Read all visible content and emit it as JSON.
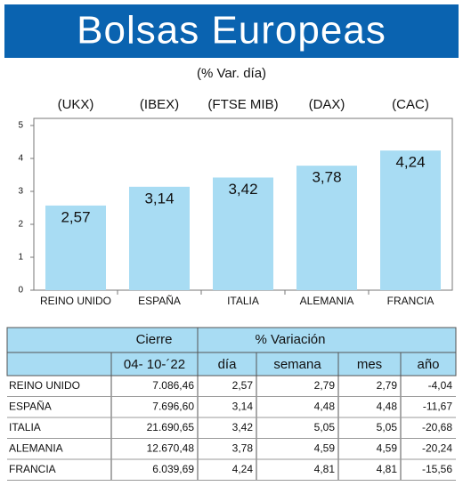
{
  "chart_data": {
    "type": "bar",
    "title": "Bolsas Europeas",
    "subtitle": "(% Var. día)",
    "indices": [
      "(UKX)",
      "(IBEX)",
      "(FTSE MIB)",
      "(DAX)",
      "(CAC)"
    ],
    "categories": [
      "REINO UNIDO",
      "ESPAÑA",
      "ITALIA",
      "ALEMANIA",
      "FRANCIA"
    ],
    "values": [
      2.57,
      3.14,
      3.42,
      3.78,
      4.24
    ],
    "value_labels": [
      "2,57",
      "3,14",
      "3,42",
      "3,78",
      "4,24"
    ],
    "color": "#a8dcf3",
    "ylim": [
      0,
      5
    ],
    "yticks": [
      0,
      1,
      2,
      3,
      4,
      5
    ],
    "grid": false
  },
  "table": {
    "header_top": [
      "Cierre",
      "% Variación"
    ],
    "header": [
      "04- 10-´22",
      "día",
      "semana",
      "mes",
      "año"
    ],
    "rows": [
      [
        "REINO UNIDO",
        "7.086,46",
        "2,57",
        "2,79",
        "2,79",
        "-4,04"
      ],
      [
        "ESPAÑA",
        "7.696,60",
        "3,14",
        "4,48",
        "4,48",
        "-11,67"
      ],
      [
        "ITALIA",
        "21.690,65",
        "3,42",
        "5,05",
        "5,05",
        "-20,68"
      ],
      [
        "ALEMANIA",
        "12.670,48",
        "3,78",
        "4,59",
        "4,59",
        "-20,24"
      ],
      [
        "FRANCIA",
        "6.039,69",
        "4,24",
        "4,81",
        "4,81",
        "-15,56"
      ]
    ]
  }
}
